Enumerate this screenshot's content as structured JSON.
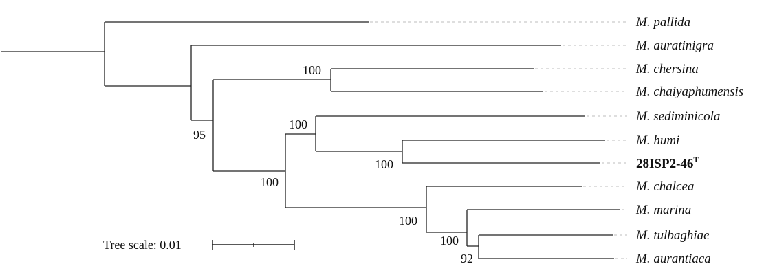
{
  "tree": {
    "taxa": [
      {
        "id": "pallida",
        "genus": "M.",
        "species": "pallida"
      },
      {
        "id": "auratinigra",
        "genus": "M.",
        "species": "auratinigra"
      },
      {
        "id": "chersina",
        "genus": "M.",
        "species": "chersina"
      },
      {
        "id": "chaiyaphumensis",
        "genus": "M.",
        "species": "chaiyaphumensis"
      },
      {
        "id": "sediminicola",
        "genus": "M.",
        "species": "sediminicola"
      },
      {
        "id": "humi",
        "genus": "M.",
        "species": "humi"
      },
      {
        "id": "strain",
        "name": "28ISP2-46",
        "superscript": "T"
      },
      {
        "id": "chalcea",
        "genus": "M.",
        "species": "chalcea"
      },
      {
        "id": "marina",
        "genus": "M.",
        "species": "marina"
      },
      {
        "id": "tulbaghiae",
        "genus": "M.",
        "species": "tulbaghiae"
      },
      {
        "id": "aurantiaca",
        "genus": "M.",
        "species": "aurantiaca"
      }
    ],
    "support_values": {
      "chersina_chaiyaphumensis": "100",
      "ingroup": "95",
      "sediminicola_group": "100",
      "humi_strain": "100",
      "core": "100",
      "chalcea_group": "100",
      "marina_group": "100",
      "tulbaghiae_aurantiaca": "92"
    },
    "scale": {
      "label": "Tree scale: 0.01"
    }
  }
}
